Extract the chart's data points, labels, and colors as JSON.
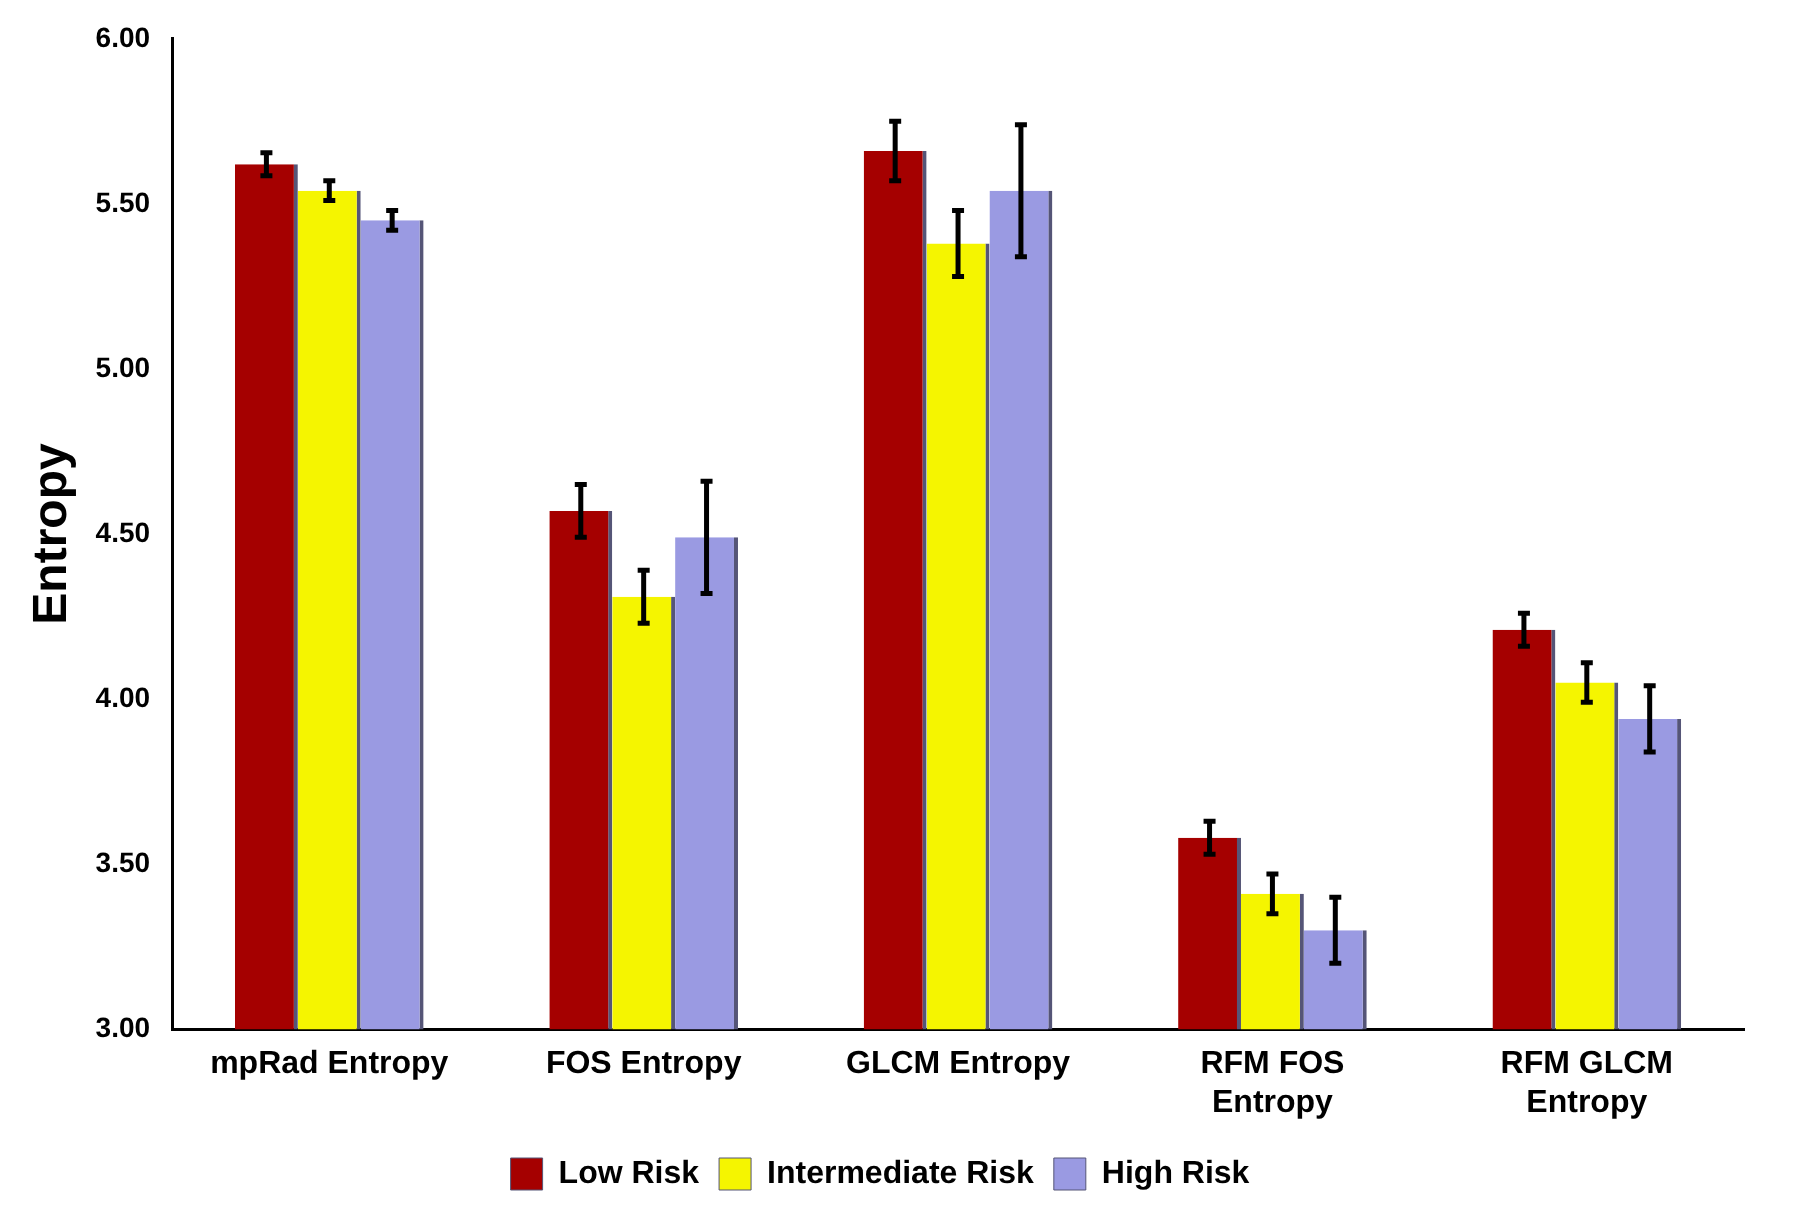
{
  "chart_data": {
    "type": "bar",
    "ylabel": "Entropy",
    "categories": [
      "mpRad Entropy",
      "FOS Entropy",
      "GLCM Entropy",
      "RFM FOS Entropy",
      "RFM GLCM Entropy"
    ],
    "series": [
      {
        "name": "Low Risk",
        "color": "#a50000",
        "values": [
          5.62,
          4.57,
          5.66,
          3.58,
          4.21
        ],
        "errors": [
          0.035,
          0.08,
          0.09,
          0.05,
          0.05
        ]
      },
      {
        "name": "Intermediate Risk",
        "color": "#f5f500",
        "values": [
          5.54,
          4.31,
          5.38,
          3.41,
          4.05
        ],
        "errors": [
          0.03,
          0.08,
          0.1,
          0.06,
          0.06
        ]
      },
      {
        "name": "High Risk",
        "color": "#9a9ae2",
        "values": [
          5.45,
          4.49,
          5.54,
          3.3,
          3.94
        ],
        "errors": [
          0.03,
          0.17,
          0.2,
          0.1,
          0.1
        ]
      }
    ],
    "ylim": [
      3,
      6
    ],
    "yticks": [
      {
        "value": 3,
        "label": "3.00"
      },
      {
        "value": 3.5,
        "label": "3.50"
      },
      {
        "value": 4,
        "label": "4.00"
      },
      {
        "value": 4.5,
        "label": "4.50"
      },
      {
        "value": 5,
        "label": "5.00"
      },
      {
        "value": 5.5,
        "label": "5.50"
      },
      {
        "value": 6,
        "label": "6.00"
      }
    ],
    "grid": false,
    "legend": "bottom"
  }
}
